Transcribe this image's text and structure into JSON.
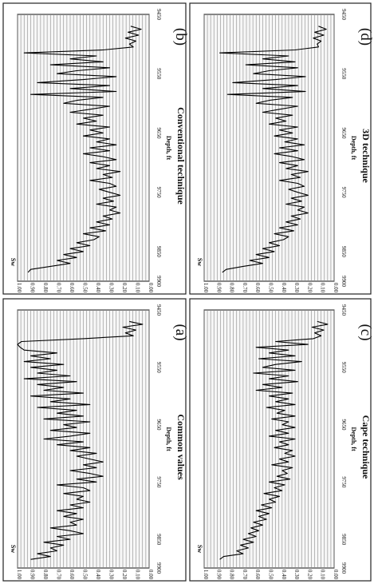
{
  "chart_data": [
    {
      "id": "b",
      "type": "line",
      "letter": "(b)",
      "title": "Conventional technique",
      "xlabel": "Depth, ft",
      "ylabel": "Sw",
      "xlim": [
        9450,
        9900
      ],
      "ylim": [
        0,
        1
      ],
      "xticks": [
        "9450",
        "9550",
        "9650",
        "9750",
        "9850",
        "9900"
      ],
      "yticks": [
        "1.00",
        "0.90",
        "0.80",
        "0.70",
        "0.60",
        "0.50",
        "0.40",
        "0.30",
        "0.20",
        "0.10",
        "0.00"
      ],
      "grid": true,
      "x": [
        9470,
        9475,
        9480,
        9485,
        9490,
        9495,
        9500,
        9505,
        9510,
        9515,
        9520,
        9525,
        9530,
        9535,
        9540,
        9545,
        9550,
        9555,
        9560,
        9565,
        9570,
        9575,
        9580,
        9585,
        9590,
        9595,
        9600,
        9605,
        9610,
        9615,
        9620,
        9625,
        9630,
        9635,
        9640,
        9645,
        9650,
        9655,
        9660,
        9665,
        9670,
        9675,
        9680,
        9685,
        9690,
        9695,
        9700,
        9705,
        9710,
        9715,
        9720,
        9725,
        9730,
        9735,
        9740,
        9745,
        9750,
        9755,
        9760,
        9765,
        9770,
        9775,
        9780,
        9785,
        9790,
        9795,
        9800,
        9805,
        9810,
        9815,
        9820,
        9825,
        9830,
        9835,
        9840,
        9845,
        9850,
        9855,
        9860,
        9865,
        9870,
        9875,
        9880,
        9885
      ],
      "y": [
        0.14,
        0.06,
        0.16,
        0.08,
        0.18,
        0.1,
        0.15,
        0.12,
        0.35,
        0.95,
        0.4,
        0.6,
        0.35,
        0.75,
        0.3,
        0.55,
        0.7,
        0.25,
        0.5,
        0.85,
        0.3,
        0.6,
        0.25,
        0.9,
        0.35,
        0.55,
        0.65,
        0.3,
        0.45,
        0.6,
        0.35,
        0.5,
        0.4,
        0.55,
        0.3,
        0.45,
        0.35,
        0.5,
        0.3,
        0.4,
        0.25,
        0.45,
        0.3,
        0.5,
        0.35,
        0.25,
        0.45,
        0.3,
        0.4,
        0.22,
        0.35,
        0.28,
        0.45,
        0.3,
        0.25,
        0.38,
        0.3,
        0.22,
        0.35,
        0.27,
        0.4,
        0.25,
        0.3,
        0.22,
        0.35,
        0.28,
        0.4,
        0.3,
        0.45,
        0.33,
        0.5,
        0.38,
        0.42,
        0.55,
        0.45,
        0.6,
        0.5,
        0.65,
        0.55,
        0.7,
        0.6,
        0.75,
        0.9,
        0.92
      ]
    },
    {
      "id": "a",
      "type": "line",
      "letter": "(a)",
      "title": "Common values",
      "xlabel": "Depth, ft",
      "ylabel": "Sw",
      "xlim": [
        9450,
        9900
      ],
      "ylim": [
        0,
        1
      ],
      "xticks": [
        "9450",
        "9550",
        "9650",
        "9750",
        "9850",
        "9900"
      ],
      "yticks": [
        "1.00",
        "0.90",
        "0.80",
        "0.70",
        "0.60",
        "0.50",
        "0.40",
        "0.30",
        "0.20",
        "0.10",
        "0.00"
      ],
      "grid": true,
      "x": [
        9470,
        9475,
        9480,
        9485,
        9490,
        9495,
        9500,
        9505,
        9510,
        9515,
        9520,
        9525,
        9530,
        9535,
        9540,
        9545,
        9550,
        9555,
        9560,
        9565,
        9570,
        9575,
        9580,
        9585,
        9590,
        9595,
        9600,
        9605,
        9610,
        9615,
        9620,
        9625,
        9630,
        9635,
        9640,
        9645,
        9650,
        9655,
        9660,
        9665,
        9670,
        9675,
        9680,
        9685,
        9690,
        9695,
        9700,
        9705,
        9710,
        9715,
        9720,
        9725,
        9730,
        9735,
        9740,
        9745,
        9750,
        9755,
        9760,
        9765,
        9770,
        9775,
        9780,
        9785,
        9790,
        9795,
        9800,
        9805,
        9810,
        9815,
        9820,
        9825,
        9830,
        9835,
        9840,
        9845,
        9850,
        9855,
        9860,
        9865,
        9870,
        9875,
        9880,
        9885
      ],
      "y": [
        0.15,
        0.05,
        0.2,
        0.1,
        0.18,
        0.12,
        0.5,
        0.97,
        1.0,
        0.98,
        0.95,
        0.7,
        0.9,
        0.75,
        0.95,
        0.65,
        0.9,
        0.7,
        0.85,
        0.6,
        0.95,
        0.55,
        0.85,
        0.65,
        0.8,
        0.5,
        0.9,
        0.6,
        0.75,
        0.45,
        0.85,
        0.55,
        0.7,
        0.5,
        0.8,
        0.45,
        0.65,
        0.55,
        0.75,
        0.45,
        0.6,
        0.8,
        0.5,
        0.7,
        0.45,
        0.6,
        0.4,
        0.55,
        0.45,
        0.35,
        0.5,
        0.4,
        0.6,
        0.45,
        0.35,
        0.55,
        0.4,
        0.7,
        0.5,
        0.45,
        0.65,
        0.5,
        0.55,
        0.45,
        0.6,
        0.5,
        0.7,
        0.55,
        0.65,
        0.5,
        0.6,
        0.55,
        0.75,
        0.6,
        0.5,
        0.7,
        0.6,
        0.8,
        0.65,
        0.75,
        0.7,
        0.85,
        0.75,
        0.9
      ]
    },
    {
      "id": "d",
      "type": "line",
      "letter": "(d)",
      "title": "3D technique",
      "xlabel": "Depth, ft",
      "ylabel": "Sw",
      "xlim": [
        9450,
        9900
      ],
      "ylim": [
        0,
        1
      ],
      "xticks": [
        "9450",
        "9550",
        "9650",
        "9750",
        "9850",
        "9900"
      ],
      "yticks": [
        "1.00",
        "0.90",
        "0.80",
        "0.70",
        "0.60",
        "0.50",
        "0.40",
        "0.30",
        "0.20",
        "0.10",
        "0.00"
      ],
      "grid": true,
      "x": [
        9470,
        9475,
        9480,
        9485,
        9490,
        9495,
        9500,
        9505,
        9510,
        9515,
        9520,
        9525,
        9530,
        9535,
        9540,
        9545,
        9550,
        9555,
        9560,
        9565,
        9570,
        9575,
        9580,
        9585,
        9590,
        9595,
        9600,
        9605,
        9610,
        9615,
        9620,
        9625,
        9630,
        9635,
        9640,
        9645,
        9650,
        9655,
        9660,
        9665,
        9670,
        9675,
        9680,
        9685,
        9690,
        9695,
        9700,
        9705,
        9710,
        9715,
        9720,
        9725,
        9730,
        9735,
        9740,
        9745,
        9750,
        9755,
        9760,
        9765,
        9770,
        9775,
        9780,
        9785,
        9790,
        9795,
        9800,
        9805,
        9810,
        9815,
        9820,
        9825,
        9830,
        9835,
        9840,
        9845,
        9850,
        9855,
        9860,
        9865,
        9870,
        9875,
        9880,
        9885
      ],
      "y": [
        0.12,
        0.06,
        0.15,
        0.08,
        0.16,
        0.1,
        0.13,
        0.12,
        0.3,
        0.88,
        0.35,
        0.55,
        0.3,
        0.68,
        0.28,
        0.5,
        0.62,
        0.22,
        0.45,
        0.78,
        0.28,
        0.55,
        0.22,
        0.82,
        0.32,
        0.5,
        0.6,
        0.28,
        0.42,
        0.55,
        0.32,
        0.45,
        0.37,
        0.5,
        0.28,
        0.42,
        0.32,
        0.46,
        0.28,
        0.38,
        0.23,
        0.42,
        0.28,
        0.46,
        0.32,
        0.23,
        0.42,
        0.28,
        0.37,
        0.2,
        0.33,
        0.26,
        0.42,
        0.28,
        0.23,
        0.35,
        0.28,
        0.2,
        0.33,
        0.25,
        0.37,
        0.23,
        0.28,
        0.2,
        0.33,
        0.26,
        0.37,
        0.28,
        0.42,
        0.31,
        0.46,
        0.35,
        0.39,
        0.5,
        0.42,
        0.55,
        0.46,
        0.6,
        0.5,
        0.65,
        0.55,
        0.7,
        0.83,
        0.86
      ]
    },
    {
      "id": "c",
      "type": "line",
      "letter": "(c)",
      "title": "Cape technique",
      "xlabel": "Depth, ft",
      "ylabel": "Sw",
      "xlim": [
        9450,
        9900
      ],
      "ylim": [
        0,
        1
      ],
      "xticks": [
        "9450",
        "9550",
        "9650",
        "9750",
        "9850",
        "9900"
      ],
      "yticks": [
        "1.00",
        "0.90",
        "0.80",
        "0.70",
        "0.60",
        "0.50",
        "0.40",
        "0.30",
        "0.20",
        "0.10",
        "0.00"
      ],
      "grid": true,
      "x": [
        9470,
        9475,
        9480,
        9485,
        9490,
        9495,
        9500,
        9505,
        9510,
        9515,
        9520,
        9525,
        9530,
        9535,
        9540,
        9545,
        9550,
        9555,
        9560,
        9565,
        9570,
        9575,
        9580,
        9585,
        9590,
        9595,
        9600,
        9605,
        9610,
        9615,
        9620,
        9625,
        9630,
        9635,
        9640,
        9645,
        9650,
        9655,
        9660,
        9665,
        9670,
        9675,
        9680,
        9685,
        9690,
        9695,
        9700,
        9705,
        9710,
        9715,
        9720,
        9725,
        9730,
        9735,
        9740,
        9745,
        9750,
        9755,
        9760,
        9765,
        9770,
        9775,
        9780,
        9785,
        9790,
        9795,
        9800,
        9805,
        9810,
        9815,
        9820,
        9825,
        9830,
        9835,
        9840,
        9845,
        9850,
        9855,
        9860,
        9865,
        9870,
        9875,
        9880,
        9885
      ],
      "y": [
        0.13,
        0.05,
        0.17,
        0.08,
        0.15,
        0.1,
        0.16,
        0.45,
        0.2,
        0.6,
        0.35,
        0.5,
        0.3,
        0.58,
        0.25,
        0.45,
        0.55,
        0.3,
        0.62,
        0.35,
        0.5,
        0.28,
        0.55,
        0.4,
        0.6,
        0.32,
        0.5,
        0.35,
        0.45,
        0.3,
        0.52,
        0.38,
        0.44,
        0.3,
        0.48,
        0.35,
        0.4,
        0.3,
        0.45,
        0.35,
        0.5,
        0.3,
        0.42,
        0.35,
        0.46,
        0.32,
        0.38,
        0.3,
        0.42,
        0.35,
        0.48,
        0.32,
        0.4,
        0.36,
        0.44,
        0.34,
        0.5,
        0.38,
        0.46,
        0.4,
        0.54,
        0.42,
        0.5,
        0.45,
        0.56,
        0.48,
        0.6,
        0.5,
        0.58,
        0.52,
        0.62,
        0.55,
        0.64,
        0.58,
        0.66,
        0.6,
        0.7,
        0.62,
        0.72,
        0.66,
        0.75,
        0.7,
        0.85,
        0.88
      ]
    }
  ]
}
